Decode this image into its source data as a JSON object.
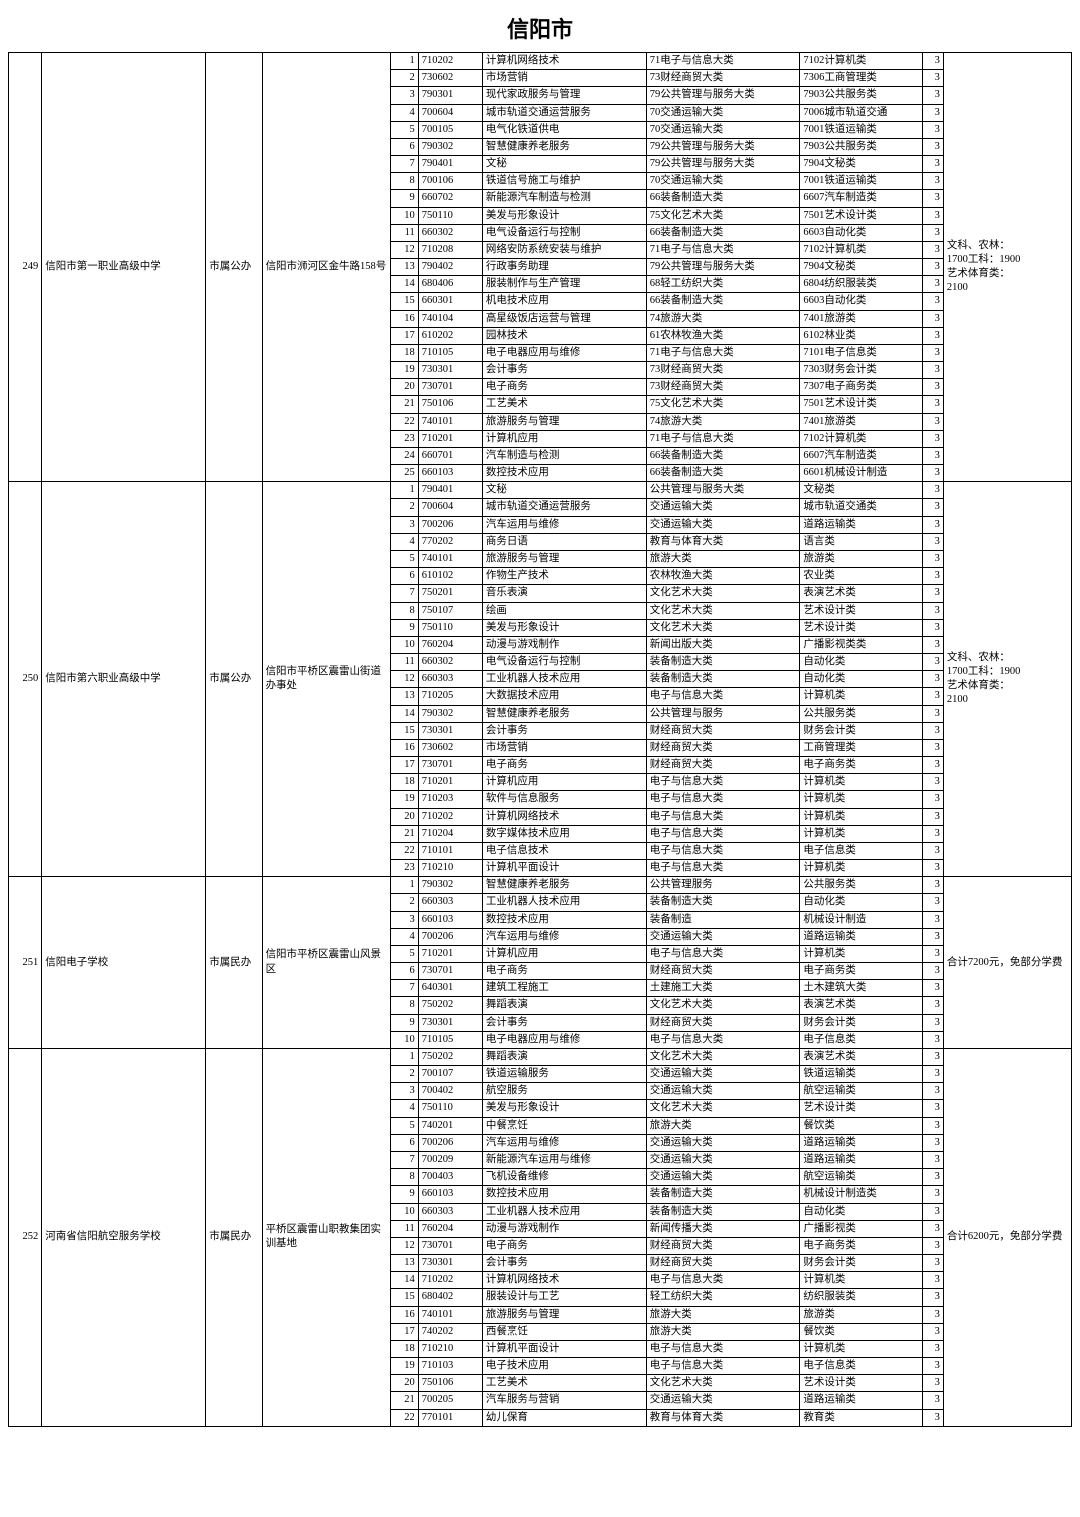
{
  "title": "信阳市",
  "notes": {
    "note_a": "文科、农林：\n1700工科：1900\n艺术体育类：\n2100",
    "note_b": "合计7200元，免部分学费",
    "note_c": "合计6200元，免部分学费"
  },
  "schools": [
    {
      "idx": "249",
      "name": "信阳市第一职业高级中学",
      "own": "市属公办",
      "addr": "信阳市浉河区金牛路158号",
      "note_key": "note_a",
      "rows": [
        {
          "n": "1",
          "code": "710202",
          "major": "计算机网络技术",
          "c1": "71电子与信息大类",
          "c2": "7102计算机类",
          "y": "3"
        },
        {
          "n": "2",
          "code": "730602",
          "major": "市场营销",
          "c1": "73财经商贸大类",
          "c2": "7306工商管理类",
          "y": "3"
        },
        {
          "n": "3",
          "code": "790301",
          "major": "现代家政服务与管理",
          "c1": "79公共管理与服务大类",
          "c2": "7903公共服务类",
          "y": "3"
        },
        {
          "n": "4",
          "code": "700604",
          "major": "城市轨道交通运营服务",
          "c1": "70交通运输大类",
          "c2": "7006城市轨道交通",
          "y": "3"
        },
        {
          "n": "5",
          "code": "700105",
          "major": "电气化铁道供电",
          "c1": "70交通运输大类",
          "c2": "7001铁道运输类",
          "y": "3"
        },
        {
          "n": "6",
          "code": "790302",
          "major": "智慧健康养老服务",
          "c1": "79公共管理与服务大类",
          "c2": "7903公共服务类",
          "y": "3"
        },
        {
          "n": "7",
          "code": "790401",
          "major": "文秘",
          "c1": "79公共管理与服务大类",
          "c2": "7904文秘类",
          "y": "3"
        },
        {
          "n": "8",
          "code": "700106",
          "major": "铁道信号施工与维护",
          "c1": "70交通运输大类",
          "c2": "7001铁道运输类",
          "y": "3"
        },
        {
          "n": "9",
          "code": "660702",
          "major": "新能源汽车制造与检测",
          "c1": "66装备制造大类",
          "c2": "6607汽车制造类",
          "y": "3"
        },
        {
          "n": "10",
          "code": "750110",
          "major": "美发与形象设计",
          "c1": "75文化艺术大类",
          "c2": "7501艺术设计类",
          "y": "3"
        },
        {
          "n": "11",
          "code": "660302",
          "major": "电气设备运行与控制",
          "c1": "66装备制造大类",
          "c2": "6603自动化类",
          "y": "3"
        },
        {
          "n": "12",
          "code": "710208",
          "major": "网络安防系统安装与维护",
          "c1": "71电子与信息大类",
          "c2": "7102计算机类",
          "y": "3"
        },
        {
          "n": "13",
          "code": "790402",
          "major": "行政事务助理",
          "c1": "79公共管理与服务大类",
          "c2": "7904文秘类",
          "y": "3"
        },
        {
          "n": "14",
          "code": "680406",
          "major": "服装制作与生产管理",
          "c1": "68轻工纺织大类",
          "c2": "6804纺织服装类",
          "y": "3"
        },
        {
          "n": "15",
          "code": "660301",
          "major": "机电技术应用",
          "c1": "66装备制造大类",
          "c2": "6603自动化类",
          "y": "3"
        },
        {
          "n": "16",
          "code": "740104",
          "major": "高星级饭店运营与管理",
          "c1": "74旅游大类",
          "c2": "7401旅游类",
          "y": "3"
        },
        {
          "n": "17",
          "code": "610202",
          "major": "园林技术",
          "c1": "61农林牧渔大类",
          "c2": "6102林业类",
          "y": "3"
        },
        {
          "n": "18",
          "code": "710105",
          "major": "电子电器应用与维修",
          "c1": "71电子与信息大类",
          "c2": "7101电子信息类",
          "y": "3"
        },
        {
          "n": "19",
          "code": "730301",
          "major": "会计事务",
          "c1": "73财经商贸大类",
          "c2": "7303财务会计类",
          "y": "3"
        },
        {
          "n": "20",
          "code": "730701",
          "major": "电子商务",
          "c1": "73财经商贸大类",
          "c2": "7307电子商务类",
          "y": "3"
        },
        {
          "n": "21",
          "code": "750106",
          "major": "工艺美术",
          "c1": "75文化艺术大类",
          "c2": "7501艺术设计类",
          "y": "3"
        },
        {
          "n": "22",
          "code": "740101",
          "major": "旅游服务与管理",
          "c1": "74旅游大类",
          "c2": "7401旅游类",
          "y": "3"
        },
        {
          "n": "23",
          "code": "710201",
          "major": "计算机应用",
          "c1": "71电子与信息大类",
          "c2": "7102计算机类",
          "y": "3"
        },
        {
          "n": "24",
          "code": "660701",
          "major": "汽车制造与检测",
          "c1": "66装备制造大类",
          "c2": "6607汽车制造类",
          "y": "3"
        },
        {
          "n": "25",
          "code": "660103",
          "major": "数控技术应用",
          "c1": "66装备制造大类",
          "c2": "6601机械设计制造",
          "y": "3"
        }
      ]
    },
    {
      "idx": "250",
      "name": "信阳市第六职业高级中学",
      "own": "市属公办",
      "addr": "信阳市平桥区震雷山街道办事处",
      "note_key": "note_a",
      "rows": [
        {
          "n": "1",
          "code": "790401",
          "major": "文秘",
          "c1": "公共管理与服务大类",
          "c2": "文秘类",
          "y": "3"
        },
        {
          "n": "2",
          "code": "700604",
          "major": "城市轨道交通运营服务",
          "c1": "交通运输大类",
          "c2": "城市轨道交通类",
          "y": "3"
        },
        {
          "n": "3",
          "code": "700206",
          "major": "汽车运用与维修",
          "c1": "交通运输大类",
          "c2": "道路运输类",
          "y": "3"
        },
        {
          "n": "4",
          "code": "770202",
          "major": "商务日语",
          "c1": "教育与体育大类",
          "c2": "语言类",
          "y": "3"
        },
        {
          "n": "5",
          "code": "740101",
          "major": "旅游服务与管理",
          "c1": "旅游大类",
          "c2": "旅游类",
          "y": "3"
        },
        {
          "n": "6",
          "code": "610102",
          "major": "作物生产技术",
          "c1": "农林牧渔大类",
          "c2": "农业类",
          "y": "3"
        },
        {
          "n": "7",
          "code": "750201",
          "major": "音乐表演",
          "c1": "文化艺术大类",
          "c2": "表演艺术类",
          "y": "3"
        },
        {
          "n": "8",
          "code": "750107",
          "major": "绘画",
          "c1": "文化艺术大类",
          "c2": "艺术设计类",
          "y": "3"
        },
        {
          "n": "9",
          "code": "750110",
          "major": "美发与形象设计",
          "c1": "文化艺术大类",
          "c2": "艺术设计类",
          "y": "3"
        },
        {
          "n": "10",
          "code": "760204",
          "major": "动漫与游戏制作",
          "c1": "新闻出版大类",
          "c2": "广播影视类类",
          "y": "3"
        },
        {
          "n": "11",
          "code": "660302",
          "major": "电气设备运行与控制",
          "c1": "装备制造大类",
          "c2": "自动化类",
          "y": "3"
        },
        {
          "n": "12",
          "code": "660303",
          "major": "工业机器人技术应用",
          "c1": "装备制造大类",
          "c2": "自动化类",
          "y": "3"
        },
        {
          "n": "13",
          "code": "710205",
          "major": "大数据技术应用",
          "c1": "电子与信息大类",
          "c2": "计算机类",
          "y": "3"
        },
        {
          "n": "14",
          "code": "790302",
          "major": "智慧健康养老服务",
          "c1": "公共管理与服务",
          "c2": "公共服务类",
          "y": "3"
        },
        {
          "n": "15",
          "code": "730301",
          "major": "会计事务",
          "c1": "财经商贸大类",
          "c2": "财务会计类",
          "y": "3"
        },
        {
          "n": "16",
          "code": "730602",
          "major": "市场营销",
          "c1": "财经商贸大类",
          "c2": "工商管理类",
          "y": "3"
        },
        {
          "n": "17",
          "code": "730701",
          "major": "电子商务",
          "c1": "财经商贸大类",
          "c2": "电子商务类",
          "y": "3"
        },
        {
          "n": "18",
          "code": "710201",
          "major": "计算机应用",
          "c1": "电子与信息大类",
          "c2": "计算机类",
          "y": "3"
        },
        {
          "n": "19",
          "code": "710203",
          "major": "软件与信息服务",
          "c1": "电子与信息大类",
          "c2": "计算机类",
          "y": "3"
        },
        {
          "n": "20",
          "code": "710202",
          "major": "计算机网络技术",
          "c1": "电子与信息大类",
          "c2": "计算机类",
          "y": "3"
        },
        {
          "n": "21",
          "code": "710204",
          "major": "数字媒体技术应用",
          "c1": "电子与信息大类",
          "c2": "计算机类",
          "y": "3"
        },
        {
          "n": "22",
          "code": "710101",
          "major": "电子信息技术",
          "c1": "电子与信息大类",
          "c2": "电子信息类",
          "y": "3"
        },
        {
          "n": "23",
          "code": "710210",
          "major": "计算机平面设计",
          "c1": "电子与信息大类",
          "c2": "计算机类",
          "y": "3"
        }
      ]
    },
    {
      "idx": "251",
      "name": "信阳电子学校",
      "own": "市属民办",
      "addr": "信阳市平桥区震雷山风景区",
      "note_key": "note_b",
      "rows": [
        {
          "n": "1",
          "code": "790302",
          "major": "智慧健康养老服务",
          "c1": "公共管理服务",
          "c2": "公共服务类",
          "y": "3"
        },
        {
          "n": "2",
          "code": "660303",
          "major": "工业机器人技术应用",
          "c1": "装备制造大类",
          "c2": "自动化类",
          "y": "3"
        },
        {
          "n": "3",
          "code": "660103",
          "major": "数控技术应用",
          "c1": "装备制造",
          "c2": "机械设计制造",
          "y": "3"
        },
        {
          "n": "4",
          "code": "700206",
          "major": "汽车运用与维修",
          "c1": "交通运输大类",
          "c2": "道路运输类",
          "y": "3"
        },
        {
          "n": "5",
          "code": "710201",
          "major": "计算机应用",
          "c1": "电子与信息大类",
          "c2": "计算机类",
          "y": "3"
        },
        {
          "n": "6",
          "code": "730701",
          "major": "电子商务",
          "c1": "财经商贸大类",
          "c2": "电子商务类",
          "y": "3"
        },
        {
          "n": "7",
          "code": "640301",
          "major": "建筑工程施工",
          "c1": "土建施工大类",
          "c2": "土木建筑大类",
          "y": "3"
        },
        {
          "n": "8",
          "code": "750202",
          "major": "舞蹈表演",
          "c1": "文化艺术大类",
          "c2": "表演艺术类",
          "y": "3"
        },
        {
          "n": "9",
          "code": "730301",
          "major": "会计事务",
          "c1": "财经商贸大类",
          "c2": "财务会计类",
          "y": "3"
        },
        {
          "n": "10",
          "code": "710105",
          "major": "电子电器应用与维修",
          "c1": "电子与信息大类",
          "c2": "电子信息类",
          "y": "3"
        }
      ]
    },
    {
      "idx": "252",
      "name": "河南省信阳航空服务学校",
      "own": "市属民办",
      "addr": "平桥区震雷山职教集团实训基地",
      "note_key": "note_c",
      "rows": [
        {
          "n": "1",
          "code": "750202",
          "major": "舞蹈表演",
          "c1": "文化艺术大类",
          "c2": "表演艺术类",
          "y": "3"
        },
        {
          "n": "2",
          "code": "700107",
          "major": "铁道运输服务",
          "c1": "交通运输大类",
          "c2": "铁道运输类",
          "y": "3"
        },
        {
          "n": "3",
          "code": "700402",
          "major": "航空服务",
          "c1": "交通运输大类",
          "c2": "航空运输类",
          "y": "3"
        },
        {
          "n": "4",
          "code": "750110",
          "major": "美发与形象设计",
          "c1": "文化艺术大类",
          "c2": "艺术设计类",
          "y": "3"
        },
        {
          "n": "5",
          "code": "740201",
          "major": "中餐烹饪",
          "c1": "旅游大类",
          "c2": "餐饮类",
          "y": "3"
        },
        {
          "n": "6",
          "code": "700206",
          "major": "汽车运用与维修",
          "c1": "交通运输大类",
          "c2": "道路运输类",
          "y": "3"
        },
        {
          "n": "7",
          "code": "700209",
          "major": "新能源汽车运用与维修",
          "c1": "交通运输大类",
          "c2": "道路运输类",
          "y": "3"
        },
        {
          "n": "8",
          "code": "700403",
          "major": "飞机设备维修",
          "c1": "交通运输大类",
          "c2": "航空运输类",
          "y": "3"
        },
        {
          "n": "9",
          "code": "660103",
          "major": "数控技术应用",
          "c1": "装备制造大类",
          "c2": "机械设计制造类",
          "y": "3"
        },
        {
          "n": "10",
          "code": "660303",
          "major": "工业机器人技术应用",
          "c1": "装备制造大类",
          "c2": "自动化类",
          "y": "3"
        },
        {
          "n": "11",
          "code": "760204",
          "major": "动漫与游戏制作",
          "c1": "新闻传播大类",
          "c2": "广播影视类",
          "y": "3"
        },
        {
          "n": "12",
          "code": "730701",
          "major": "电子商务",
          "c1": "财经商贸大类",
          "c2": "电子商务类",
          "y": "3"
        },
        {
          "n": "13",
          "code": "730301",
          "major": "会计事务",
          "c1": "财经商贸大类",
          "c2": "财务会计类",
          "y": "3"
        },
        {
          "n": "14",
          "code": "710202",
          "major": "计算机网络技术",
          "c1": "电子与信息大类",
          "c2": "计算机类",
          "y": "3"
        },
        {
          "n": "15",
          "code": "680402",
          "major": "服装设计与工艺",
          "c1": "轻工纺织大类",
          "c2": "纺织服装类",
          "y": "3"
        },
        {
          "n": "16",
          "code": "740101",
          "major": "旅游服务与管理",
          "c1": "旅游大类",
          "c2": "旅游类",
          "y": "3"
        },
        {
          "n": "17",
          "code": "740202",
          "major": "西餐烹饪",
          "c1": "旅游大类",
          "c2": "餐饮类",
          "y": "3"
        },
        {
          "n": "18",
          "code": "710210",
          "major": "计算机平面设计",
          "c1": "电子与信息大类",
          "c2": "计算机类",
          "y": "3"
        },
        {
          "n": "19",
          "code": "710103",
          "major": "电子技术应用",
          "c1": "电子与信息大类",
          "c2": "电子信息类",
          "y": "3"
        },
        {
          "n": "20",
          "code": "750106",
          "major": "工艺美术",
          "c1": "文化艺术大类",
          "c2": "艺术设计类",
          "y": "3"
        },
        {
          "n": "21",
          "code": "700205",
          "major": "汽车服务与营销",
          "c1": "交通运输大类",
          "c2": "道路运输类",
          "y": "3"
        },
        {
          "n": "22",
          "code": "770101",
          "major": "幼儿保育",
          "c1": "教育与体育大类",
          "c2": "教育类",
          "y": "3"
        }
      ]
    }
  ]
}
